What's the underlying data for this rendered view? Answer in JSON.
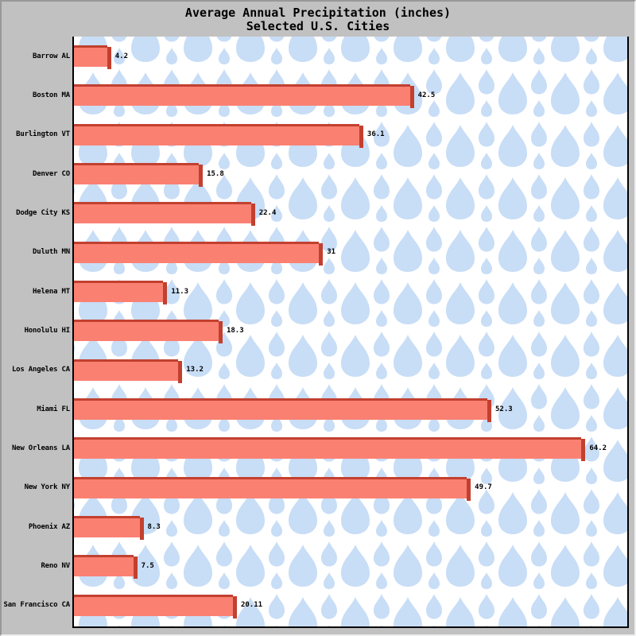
{
  "window": {
    "background_color": "#c1c1c1",
    "border_dark_color": "#989898",
    "border_light_color": "#eeeeee"
  },
  "chart_data": {
    "type": "bar",
    "orientation": "horizontal",
    "title": "Average Annual Precipitation (inches)",
    "subtitle": "Selected U.S. Cities",
    "categories": [
      "Barrow AL",
      "Boston MA",
      "Burlington VT",
      "Denver CO",
      "Dodge City KS",
      "Duluth MN",
      "Helena MT",
      "Honolulu HI",
      "Los Angeles CA",
      "Miami FL",
      "New Orleans LA",
      "New York NY",
      "Phoenix AZ",
      "Reno NV",
      "San Francisco CA"
    ],
    "values": [
      4.2,
      42.5,
      36.1,
      15.8,
      22.4,
      31,
      11.3,
      18.3,
      13.2,
      52.3,
      64.2,
      49.7,
      8.3,
      7.5,
      20.11
    ],
    "value_labels": [
      "4.2",
      "42.5",
      "36.1",
      "15.8",
      "22.4",
      "31",
      "11.3",
      "18.3",
      "13.2",
      "52.3",
      "64.2",
      "49.7",
      "8.3",
      "7.5",
      "20.11"
    ],
    "xlim": [
      0,
      70
    ],
    "grid": false,
    "legend": false,
    "axis_ticks_visible": false,
    "bar_color": "#fa8072",
    "bar_edge_color": "#c2402f",
    "plot_background": "#ffffff",
    "plot_pattern": "raindrops",
    "raindrop_color": "#c8ddf6",
    "axis_color": "#000000",
    "text_color": "#000000"
  }
}
